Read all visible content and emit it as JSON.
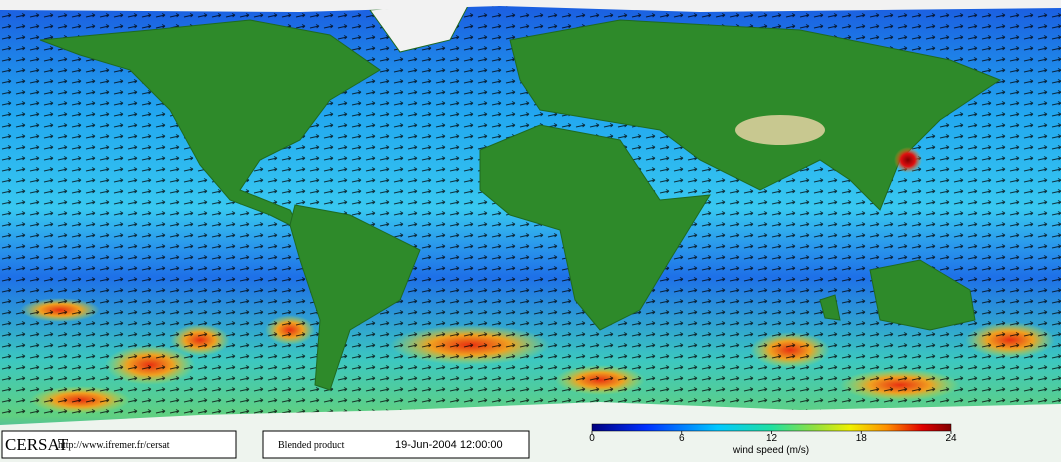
{
  "footer": {
    "logo": "CERSAT",
    "url": "http://www.ifremer.fr/cersat",
    "product": "Blended product",
    "timestamp": "19-Jun-2004 12:00:00"
  },
  "colorbar": {
    "range": [
      0,
      24
    ],
    "ticks": [
      0,
      6,
      12,
      18,
      24
    ],
    "label": "wind speed (m/s)"
  }
}
